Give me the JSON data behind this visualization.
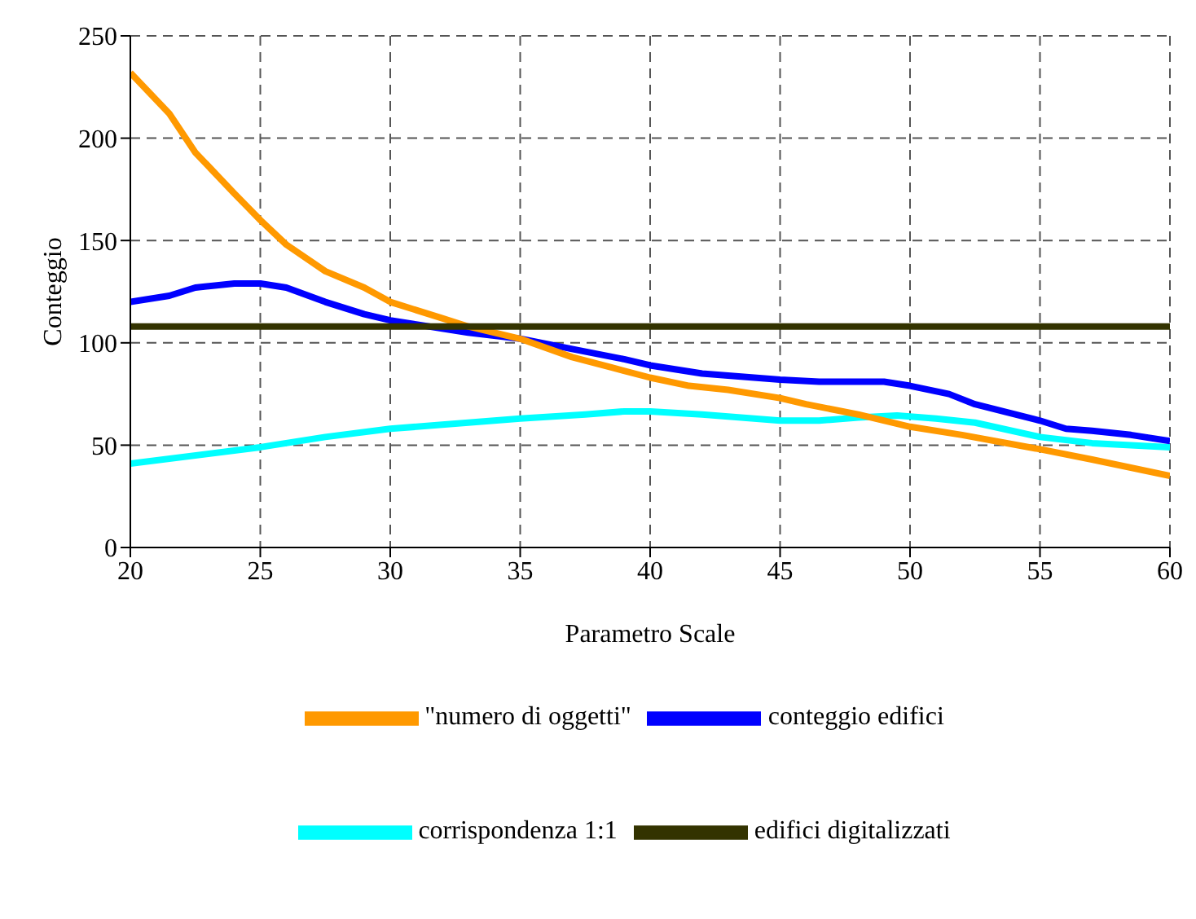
{
  "chart_data": {
    "type": "line",
    "xlabel": "Parametro Scale",
    "ylabel": "Conteggio",
    "xlim": [
      20,
      60
    ],
    "xticks": [
      20,
      25,
      30,
      35,
      40,
      45,
      50,
      55,
      60
    ],
    "ylim": [
      0,
      250
    ],
    "yticks": [
      0,
      50,
      100,
      150,
      200,
      250
    ],
    "grid": true,
    "legend": "bottom",
    "marker": "none",
    "line_style": "solid",
    "series": [
      {
        "name": "corrispondenza 1:1",
        "color": "#00ffff",
        "x": [
          20,
          25,
          27.5,
          30,
          32,
          35,
          37.5,
          39,
          40,
          42,
          45,
          46.5,
          48,
          49.5,
          51,
          52.5,
          55,
          57,
          60
        ],
        "values": [
          41,
          49,
          54,
          58,
          60,
          63,
          65,
          66.5,
          66.5,
          65,
          62,
          62,
          63.5,
          64.5,
          63,
          61,
          54,
          51,
          49
        ]
      },
      {
        "name": "conteggio edifici",
        "color": "#0000ff",
        "x": [
          20,
          21.5,
          22.5,
          24,
          25,
          26,
          27.5,
          29,
          30,
          32,
          33,
          35,
          37,
          39,
          40,
          42,
          44,
          45,
          46.5,
          48,
          49,
          50,
          51.5,
          52.5,
          55,
          56,
          57,
          58.5,
          60
        ],
        "values": [
          120,
          123,
          127,
          129,
          129,
          127,
          120,
          114,
          111,
          107,
          105,
          102,
          97,
          92,
          89,
          85,
          83,
          82,
          81,
          81,
          81,
          79,
          75,
          70,
          62,
          58,
          57,
          55,
          52
        ]
      },
      {
        "name": "\"numero di oggetti\"",
        "color": "#ff9900",
        "x": [
          20,
          21.5,
          22.5,
          24,
          25,
          26,
          27.5,
          29,
          30,
          32,
          33,
          35,
          37,
          38.5,
          40,
          41.5,
          43,
          45,
          46,
          48,
          50,
          52,
          55,
          57,
          60
        ],
        "values": [
          232,
          212,
          193,
          173,
          160,
          148,
          135,
          127,
          120,
          112,
          108,
          102,
          93,
          88,
          83,
          79,
          77,
          73,
          70,
          65,
          59,
          55,
          48,
          43,
          35
        ]
      },
      {
        "name": "edifici digitalizzati",
        "color": "#333300",
        "x": [
          20,
          60
        ],
        "values": [
          108,
          108
        ]
      }
    ]
  }
}
